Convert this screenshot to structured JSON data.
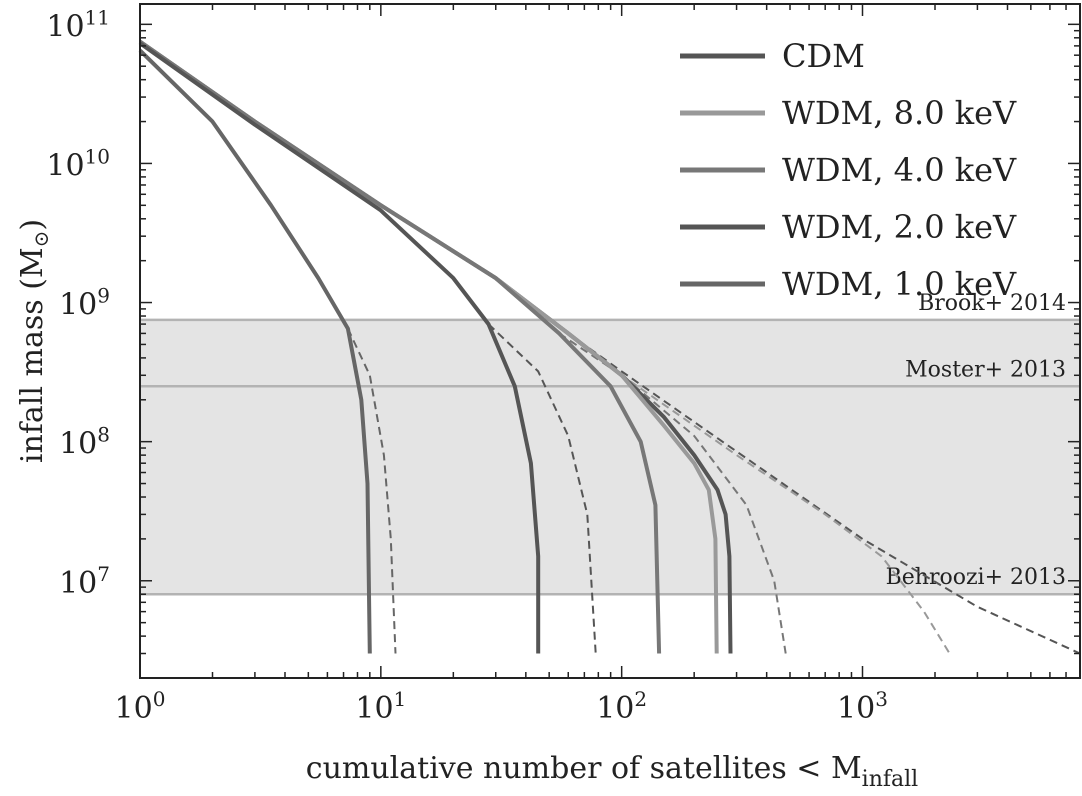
{
  "chart_data": {
    "type": "line",
    "xlabel": "cumulative number of satellites < M",
    "xlabel_sub": "infall",
    "ylabel": "infall mass (M",
    "ylabel_sub": "⊙",
    "ylabel_close": ")",
    "x_scale": "log",
    "y_scale": "log",
    "xlim": [
      1,
      8000
    ],
    "ylim": [
      2000000,
      140000000000
    ],
    "x_ticks": [
      {
        "base": "10",
        "exp": "0",
        "value": 1
      },
      {
        "base": "10",
        "exp": "1",
        "value": 10
      },
      {
        "base": "10",
        "exp": "2",
        "value": 100
      },
      {
        "base": "10",
        "exp": "3",
        "value": 1000
      }
    ],
    "y_ticks": [
      {
        "base": "10",
        "exp": "7",
        "value": 10000000
      },
      {
        "base": "10",
        "exp": "8",
        "value": 100000000
      },
      {
        "base": "10",
        "exp": "9",
        "value": 1000000000
      },
      {
        "base": "10",
        "exp": "10",
        "value": 10000000000
      },
      {
        "base": "10",
        "exp": "11",
        "value": 100000000000
      }
    ],
    "shaded_band": {
      "y_range": [
        8000000,
        750000000
      ],
      "color": "#e4e4e4"
    },
    "reference_lines": [
      {
        "name": "Brook+ 2014",
        "y": 750000000
      },
      {
        "name": "Moster+ 2013",
        "y": 250000000
      },
      {
        "name": "Behroozi+ 2013",
        "y": 8000000
      }
    ],
    "legend": {
      "location": "top-right"
    },
    "series": [
      {
        "name": "CDM",
        "color": "#555555",
        "points": [
          [
            1,
            75000000000
          ],
          [
            3,
            20000000000
          ],
          [
            10,
            5000000000
          ],
          [
            30,
            1500000000
          ],
          [
            60,
            600000000
          ],
          [
            100,
            300000000
          ],
          [
            150,
            150000000
          ],
          [
            200,
            80000000
          ],
          [
            250,
            45000000
          ],
          [
            270,
            30000000
          ],
          [
            280,
            15000000
          ],
          [
            283,
            3000000
          ]
        ],
        "dashed_points": [
          [
            60,
            600000000
          ],
          [
            100,
            320000000
          ],
          [
            300,
            85000000
          ],
          [
            1000,
            20000000
          ],
          [
            3000,
            6500000
          ],
          [
            8000,
            3000000
          ]
        ]
      },
      {
        "name": "WDM, 8.0 keV",
        "color": "#999999",
        "points": [
          [
            1,
            75000000000
          ],
          [
            3,
            20000000000
          ],
          [
            10,
            5000000000
          ],
          [
            30,
            1500000000
          ],
          [
            60,
            600000000
          ],
          [
            100,
            300000000
          ],
          [
            150,
            130000000
          ],
          [
            200,
            70000000
          ],
          [
            230,
            45000000
          ],
          [
            245,
            20000000
          ],
          [
            248,
            3000000
          ]
        ],
        "dashed_points": [
          [
            60,
            600000000
          ],
          [
            100,
            300000000
          ],
          [
            300,
            80000000
          ],
          [
            700,
            30000000
          ],
          [
            1200,
            15000000
          ],
          [
            1800,
            6000000
          ],
          [
            2300,
            3000000
          ]
        ]
      },
      {
        "name": "WDM, 4.0 keV",
        "color": "#777777",
        "points": [
          [
            1,
            75000000000
          ],
          [
            3,
            20000000000
          ],
          [
            10,
            5000000000
          ],
          [
            30,
            1500000000
          ],
          [
            55,
            600000000
          ],
          [
            90,
            250000000
          ],
          [
            120,
            100000000
          ],
          [
            138,
            35000000
          ],
          [
            143,
            3000000
          ]
        ],
        "dashed_points": [
          [
            55,
            600000000
          ],
          [
            100,
            300000000
          ],
          [
            200,
            110000000
          ],
          [
            330,
            35000000
          ],
          [
            430,
            10000000
          ],
          [
            480,
            3000000
          ]
        ]
      },
      {
        "name": "WDM, 2.0 keV",
        "color": "#555555",
        "points": [
          [
            1,
            73000000000
          ],
          [
            3,
            19000000000
          ],
          [
            10,
            4600000000
          ],
          [
            20,
            1500000000
          ],
          [
            28,
            700000000
          ],
          [
            36,
            250000000
          ],
          [
            42,
            70000000
          ],
          [
            45,
            15000000
          ],
          [
            45,
            3000000
          ]
        ],
        "dashed_points": [
          [
            28,
            700000000
          ],
          [
            45,
            320000000
          ],
          [
            60,
            110000000
          ],
          [
            72,
            30000000
          ],
          [
            78,
            3000000
          ]
        ]
      },
      {
        "name": "WDM, 1.0 keV",
        "color": "#666666",
        "points": [
          [
            1,
            65000000000
          ],
          [
            2,
            20000000000
          ],
          [
            3.5,
            5000000000
          ],
          [
            5.5,
            1500000000
          ],
          [
            7.3,
            650000000
          ],
          [
            8.3,
            200000000
          ],
          [
            8.8,
            50000000
          ],
          [
            9,
            3000000
          ]
        ],
        "dashed_points": [
          [
            7.3,
            650000000
          ],
          [
            9,
            300000000
          ],
          [
            10.3,
            80000000
          ],
          [
            11,
            20000000
          ],
          [
            11.5,
            3000000
          ]
        ]
      }
    ]
  }
}
